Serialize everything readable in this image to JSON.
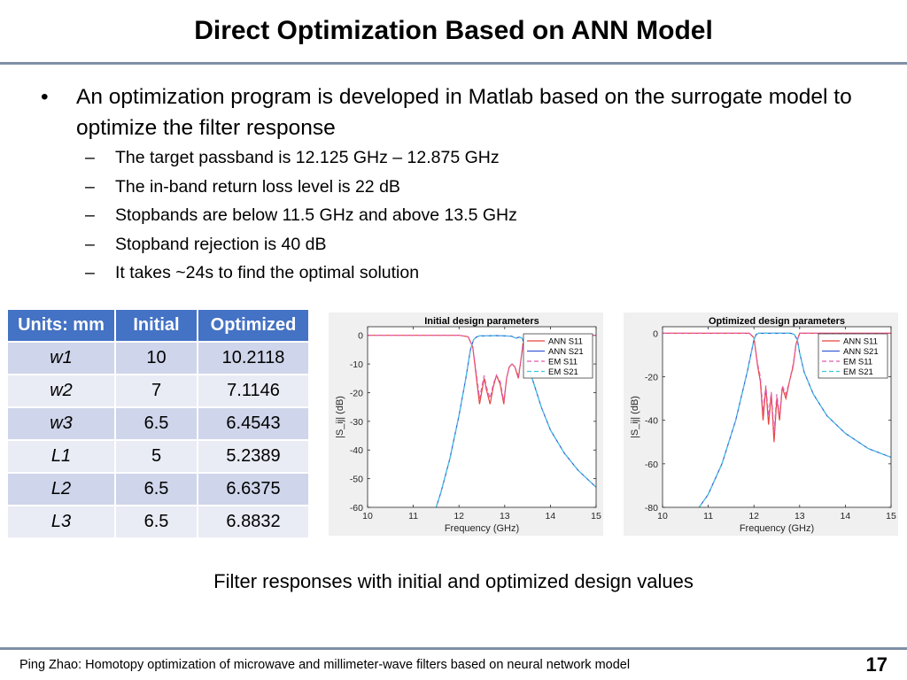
{
  "slide": {
    "title": "Direct Optimization Based on ANN Model",
    "bullet": "An optimization program is developed in Matlab based on the surrogate model to optimize the filter response",
    "sub_bullets": [
      "The target passband is 12.125 GHz – 12.875 GHz",
      "The in-band return loss level is 22 dB",
      "Stopbands are below 11.5 GHz and above 13.5 GHz",
      "Stopband rejection is 40 dB",
      "It takes ~24s to find the optimal solution"
    ],
    "bullet_marker": "•",
    "dash_marker": "–",
    "caption": "Filter responses with initial and optimized design values",
    "footer": "Ping Zhao:  Homotopy  optimization  of microwave  and millimeter-wave  filters  based  on neural  network  model",
    "page_number": "17"
  },
  "table": {
    "headers": [
      "Units: mm",
      "Initial",
      "Optimized"
    ],
    "rows": [
      [
        "w1",
        "10",
        "10.2118"
      ],
      [
        "w2",
        "7",
        "7.1146"
      ],
      [
        "w3",
        "6.5",
        "6.4543"
      ],
      [
        "L1",
        "5",
        "5.2389"
      ],
      [
        "L2",
        "6.5",
        "6.6375"
      ],
      [
        "L3",
        "6.5",
        "6.8832"
      ]
    ],
    "header_color": "#4472c4",
    "row_colors": [
      "#cfd5ea",
      "#e9ebf5"
    ]
  },
  "chart_data": [
    {
      "type": "line",
      "title": "Initial design parameters",
      "xlabel": "Frequency (GHz)",
      "ylabel": "|S_ij| (dB)",
      "xlim": [
        10,
        15
      ],
      "ylim": [
        -60,
        3
      ],
      "xticks": [
        10,
        11,
        12,
        13,
        14,
        15
      ],
      "yticks": [
        0,
        -10,
        -20,
        -30,
        -40,
        -50,
        -60
      ],
      "legend_position": "top-right",
      "grid": false,
      "series": [
        {
          "name": "ANN S11",
          "color": "#e8443c",
          "dash": "solid",
          "x": [
            10,
            11,
            12,
            12.2,
            12.3,
            12.36,
            12.45,
            12.55,
            12.6,
            12.68,
            12.75,
            12.82,
            12.9,
            12.98,
            13.04,
            13.1,
            13.16,
            13.22,
            13.3,
            13.35,
            13.4,
            13.5,
            14,
            15
          ],
          "y": [
            0,
            0,
            0,
            -0.5,
            -4,
            -12,
            -24,
            -15,
            -19,
            -24,
            -18,
            -14,
            -17,
            -24,
            -15,
            -11,
            -10,
            -11,
            -15,
            -9,
            -3,
            -0.5,
            0,
            0
          ]
        },
        {
          "name": "ANN S21",
          "color": "#3c5cd8",
          "dash": "solid",
          "x": [
            11.5,
            11.6,
            11.8,
            12.0,
            12.15,
            12.25,
            12.32,
            12.38,
            12.45,
            12.6,
            12.8,
            13.0,
            13.15,
            13.25,
            13.32,
            13.38,
            13.42,
            13.5,
            13.6,
            13.8,
            14.0,
            14.3,
            14.6,
            15.0
          ],
          "y": [
            -60,
            -55,
            -43,
            -28,
            -15,
            -5,
            -1.5,
            -0.6,
            -0.2,
            -0.2,
            -0.1,
            -0.2,
            -0.3,
            -1,
            -0.6,
            -1,
            -2.5,
            -8,
            -15,
            -25,
            -33,
            -41,
            -47,
            -53
          ]
        },
        {
          "name": "EM S11",
          "color": "#e05bb0",
          "dash": "dashed",
          "x": [
            10,
            11,
            12,
            12.2,
            12.3,
            12.36,
            12.45,
            12.55,
            12.6,
            12.68,
            12.75,
            12.82,
            12.9,
            12.98,
            13.04,
            13.1,
            13.16,
            13.22,
            13.3,
            13.35,
            13.4,
            13.5,
            14,
            15
          ],
          "y": [
            0,
            0,
            0,
            -0.5,
            -4,
            -11,
            -22,
            -14,
            -18,
            -22,
            -17,
            -14,
            -16,
            -23,
            -15,
            -11,
            -10,
            -11,
            -14,
            -9,
            -3,
            -0.5,
            0,
            0
          ]
        },
        {
          "name": "EM S21",
          "color": "#3fc7e0",
          "dash": "dashed",
          "x": [
            11.5,
            11.6,
            11.8,
            12.0,
            12.15,
            12.25,
            12.32,
            12.38,
            12.45,
            12.6,
            12.8,
            13.0,
            13.15,
            13.25,
            13.32,
            13.38,
            13.42,
            13.5,
            13.6,
            13.8,
            14.0,
            14.3,
            14.6,
            15.0
          ],
          "y": [
            -60,
            -55,
            -43,
            -28,
            -15,
            -5,
            -1.5,
            -0.6,
            -0.2,
            -0.2,
            -0.1,
            -0.2,
            -0.3,
            -1,
            -0.6,
            -1,
            -2.5,
            -8,
            -15,
            -25,
            -33,
            -41,
            -47,
            -53
          ]
        }
      ]
    },
    {
      "type": "line",
      "title": "Optimized design parameters",
      "xlabel": "Frequency (GHz)",
      "ylabel": "|S_ij| (dB)",
      "xlim": [
        10,
        15
      ],
      "ylim": [
        -80,
        3
      ],
      "xticks": [
        10,
        11,
        12,
        13,
        14,
        15
      ],
      "yticks": [
        0,
        -20,
        -40,
        -60,
        -80
      ],
      "legend_position": "top-right",
      "grid": false,
      "series": [
        {
          "name": "ANN S11",
          "color": "#e8443c",
          "dash": "solid",
          "x": [
            10,
            11,
            11.9,
            12.0,
            12.08,
            12.14,
            12.2,
            12.26,
            12.32,
            12.38,
            12.44,
            12.5,
            12.56,
            12.62,
            12.7,
            12.78,
            12.86,
            12.92,
            13.0,
            13.5,
            15
          ],
          "y": [
            0,
            0,
            0,
            -2,
            -15,
            -22,
            -40,
            -25,
            -42,
            -28,
            -50,
            -30,
            -40,
            -25,
            -30,
            -22,
            -15,
            -5,
            0,
            0,
            0
          ]
        },
        {
          "name": "ANN S21",
          "color": "#3c5cd8",
          "dash": "solid",
          "x": [
            10.8,
            11.0,
            11.3,
            11.6,
            11.85,
            12.0,
            12.05,
            12.1,
            12.2,
            12.5,
            12.8,
            12.88,
            12.95,
            13.0,
            13.1,
            13.3,
            13.6,
            14.0,
            14.5,
            15.0
          ],
          "y": [
            -80,
            -74,
            -60,
            -40,
            -18,
            -3,
            -0.5,
            0,
            0,
            0,
            0,
            -0.5,
            -3,
            -9,
            -18,
            -28,
            -38,
            -46,
            -53,
            -57
          ]
        },
        {
          "name": "EM S11",
          "color": "#e05bb0",
          "dash": "dashed",
          "x": [
            10,
            11,
            11.9,
            12.0,
            12.08,
            12.14,
            12.2,
            12.26,
            12.32,
            12.38,
            12.44,
            12.5,
            12.56,
            12.62,
            12.7,
            12.78,
            12.86,
            12.92,
            13.0,
            13.5,
            15
          ],
          "y": [
            0,
            0,
            0,
            -2,
            -14,
            -20,
            -36,
            -24,
            -38,
            -27,
            -46,
            -28,
            -38,
            -24,
            -28,
            -22,
            -14,
            -5,
            0,
            0,
            0
          ]
        },
        {
          "name": "EM S21",
          "color": "#3fc7e0",
          "dash": "dashed",
          "x": [
            10.8,
            11.0,
            11.3,
            11.6,
            11.85,
            12.0,
            12.05,
            12.1,
            12.2,
            12.5,
            12.8,
            12.88,
            12.95,
            13.0,
            13.1,
            13.3,
            13.6,
            14.0,
            14.5,
            15.0
          ],
          "y": [
            -80,
            -74,
            -60,
            -40,
            -18,
            -3,
            -0.5,
            0,
            0,
            0,
            0,
            -0.5,
            -3,
            -9,
            -18,
            -28,
            -38,
            -46,
            -53,
            -57
          ]
        }
      ]
    }
  ]
}
